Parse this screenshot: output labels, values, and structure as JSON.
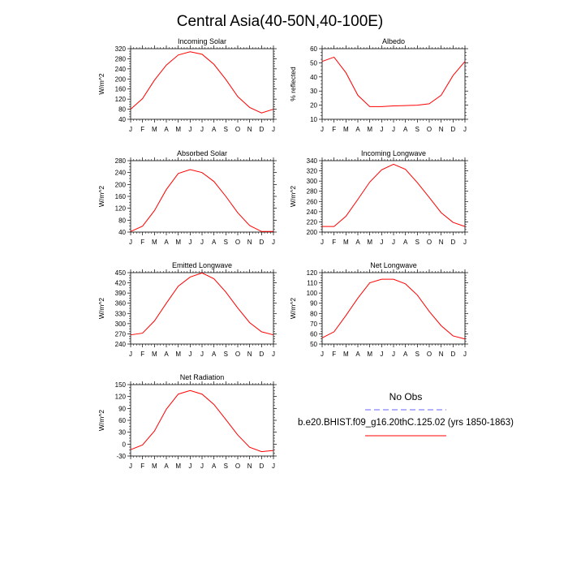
{
  "title": "Central Asia(40-50N,40-100E)",
  "legend": {
    "obs_label": "No Obs",
    "obs_color": "#6666ff",
    "model_label": "b.e20.BHIST.f09_g16.20thC.125.02 (yrs 1850-1863)",
    "model_color": "#ff0000"
  },
  "chart_data": [
    {
      "type": "line",
      "title": "Incoming Solar",
      "ylabel": "W/m^2",
      "categories": [
        "J",
        "F",
        "M",
        "A",
        "M",
        "J",
        "J",
        "A",
        "S",
        "O",
        "N",
        "D",
        "J"
      ],
      "ylim": [
        40,
        320
      ],
      "yticks": [
        40,
        80,
        120,
        160,
        200,
        240,
        280,
        320
      ],
      "series": [
        {
          "values": [
            80,
            122,
            195,
            255,
            295,
            308,
            298,
            258,
            198,
            130,
            87,
            65,
            80
          ]
        }
      ]
    },
    {
      "type": "line",
      "title": "Albedo",
      "ylabel": "% reflected",
      "categories": [
        "J",
        "F",
        "M",
        "A",
        "M",
        "J",
        "J",
        "A",
        "S",
        "O",
        "N",
        "D",
        "J"
      ],
      "ylim": [
        10,
        60
      ],
      "yticks": [
        10,
        20,
        30,
        40,
        50,
        60
      ],
      "series": [
        {
          "values": [
            51,
            54,
            43,
            27,
            19,
            19,
            19.5,
            19.7,
            20,
            21,
            27,
            41,
            51
          ]
        }
      ]
    },
    {
      "type": "line",
      "title": "Absorbed Solar",
      "ylabel": "W/m^2",
      "categories": [
        "J",
        "F",
        "M",
        "A",
        "M",
        "J",
        "J",
        "A",
        "S",
        "O",
        "N",
        "D",
        "J"
      ],
      "ylim": [
        40,
        280
      ],
      "yticks": [
        40,
        80,
        120,
        160,
        200,
        240,
        280
      ],
      "series": [
        {
          "values": [
            42,
            60,
            112,
            183,
            237,
            250,
            240,
            210,
            160,
            105,
            62,
            42,
            42
          ]
        }
      ]
    },
    {
      "type": "line",
      "title": "Incoming Longwave",
      "ylabel": "W/m^2",
      "categories": [
        "J",
        "F",
        "M",
        "A",
        "M",
        "J",
        "J",
        "A",
        "S",
        "O",
        "N",
        "D",
        "J"
      ],
      "ylim": [
        200,
        340
      ],
      "yticks": [
        200,
        220,
        240,
        260,
        280,
        300,
        320,
        340
      ],
      "series": [
        {
          "values": [
            211,
            211,
            231,
            264,
            298,
            322,
            333,
            323,
            297,
            268,
            238,
            219,
            211
          ]
        }
      ]
    },
    {
      "type": "line",
      "title": "Emitted Longwave",
      "ylabel": "W/m^2",
      "categories": [
        "J",
        "F",
        "M",
        "A",
        "M",
        "J",
        "J",
        "A",
        "S",
        "O",
        "N",
        "D",
        "J"
      ],
      "ylim": [
        240,
        450
      ],
      "yticks": [
        240,
        270,
        300,
        330,
        360,
        390,
        420,
        450
      ],
      "series": [
        {
          "values": [
            267,
            272,
            308,
            360,
            410,
            437,
            449,
            432,
            393,
            346,
            303,
            276,
            267
          ]
        }
      ]
    },
    {
      "type": "line",
      "title": "Net Longwave",
      "ylabel": "W/m^2",
      "categories": [
        "J",
        "F",
        "M",
        "A",
        "M",
        "J",
        "J",
        "A",
        "S",
        "O",
        "N",
        "D",
        "J"
      ],
      "ylim": [
        50,
        120
      ],
      "yticks": [
        50,
        60,
        70,
        80,
        90,
        100,
        110,
        120
      ],
      "series": [
        {
          "values": [
            56,
            62,
            78,
            95,
            110,
            113.5,
            113.5,
            109,
            98,
            82,
            68,
            58,
            55
          ]
        }
      ]
    },
    {
      "type": "line",
      "title": "Net Radiation",
      "ylabel": "W/m^2",
      "categories": [
        "J",
        "F",
        "M",
        "A",
        "M",
        "J",
        "J",
        "A",
        "S",
        "O",
        "N",
        "D",
        "J"
      ],
      "ylim": [
        -30,
        150
      ],
      "yticks": [
        -30,
        0,
        30,
        60,
        90,
        120,
        150
      ],
      "series": [
        {
          "values": [
            -14,
            -2,
            33,
            88,
            126,
            135,
            126,
            100,
            62,
            23,
            -8,
            -19,
            -16
          ]
        }
      ]
    }
  ]
}
